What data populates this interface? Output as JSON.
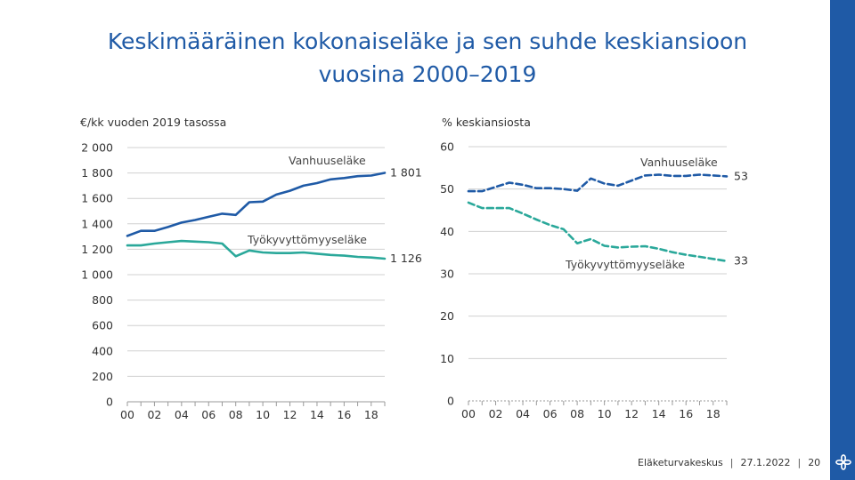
{
  "slide": {
    "title_line1": "Keskimääräinen kokonaiseläke ja sen suhde keskiansioon",
    "title_line2": "vuosina 2000–2019"
  },
  "footer": {
    "organization": "Eläketurvakeskus",
    "date": "27.1.2022",
    "page": "20"
  },
  "colors": {
    "title": "#1f5aa6",
    "vanhuuselake": "#1f5aa6",
    "tyokyvyttomyyselake": "#2aa89a",
    "grid": "#d0d0d0",
    "accent_bar": "#1f5aa6"
  },
  "logo_icon": "flower-logo-icon",
  "chart_data": [
    {
      "type": "line",
      "ylabel": "€/kk vuoden 2019 tasossa",
      "ylim": [
        0,
        2000
      ],
      "yticks": [
        0,
        200,
        400,
        600,
        800,
        1000,
        1200,
        1400,
        1600,
        1800,
        2000
      ],
      "ytick_labels": [
        "0",
        "200",
        "400",
        "600",
        "800",
        "1 000",
        "1 200",
        "1 400",
        "1 600",
        "1 800",
        "2 000"
      ],
      "xlim": [
        2000,
        2019
      ],
      "xticks": [
        2000,
        2002,
        2004,
        2006,
        2008,
        2010,
        2012,
        2014,
        2016,
        2018
      ],
      "xtick_labels": [
        "00",
        "02",
        "04",
        "06",
        "08",
        "10",
        "12",
        "14",
        "16",
        "18"
      ],
      "grid": true,
      "x": [
        2000,
        2001,
        2002,
        2003,
        2004,
        2005,
        2006,
        2007,
        2008,
        2009,
        2010,
        2011,
        2012,
        2013,
        2014,
        2015,
        2016,
        2017,
        2018,
        2019
      ],
      "series": [
        {
          "name": "Vanhuuseläke",
          "style": "solid",
          "values": [
            1305,
            1345,
            1345,
            1375,
            1410,
            1430,
            1455,
            1480,
            1470,
            1570,
            1575,
            1630,
            1660,
            1700,
            1720,
            1750,
            1760,
            1775,
            1780,
            1801
          ],
          "end_label": "1 801"
        },
        {
          "name": "Työkyvyttömyyseläke",
          "style": "solid",
          "values": [
            1230,
            1230,
            1245,
            1255,
            1265,
            1260,
            1255,
            1245,
            1145,
            1190,
            1175,
            1170,
            1170,
            1175,
            1165,
            1155,
            1150,
            1140,
            1135,
            1126
          ],
          "end_label": "1 126"
        }
      ]
    },
    {
      "type": "line",
      "ylabel": "% keskiansiosta",
      "ylim": [
        0,
        60
      ],
      "yticks": [
        0,
        10,
        20,
        30,
        40,
        50,
        60
      ],
      "ytick_labels": [
        "0",
        "10",
        "20",
        "30",
        "40",
        "50",
        "60"
      ],
      "xlim": [
        2000,
        2019
      ],
      "xticks": [
        2000,
        2002,
        2004,
        2006,
        2008,
        2010,
        2012,
        2014,
        2016,
        2018
      ],
      "xtick_labels": [
        "00",
        "02",
        "04",
        "06",
        "08",
        "10",
        "12",
        "14",
        "16",
        "18"
      ],
      "grid": true,
      "x": [
        2000,
        2001,
        2002,
        2003,
        2004,
        2005,
        2006,
        2007,
        2008,
        2009,
        2010,
        2011,
        2012,
        2013,
        2014,
        2015,
        2016,
        2017,
        2018,
        2019
      ],
      "series": [
        {
          "name": "Vanhuuseläke",
          "style": "dashed",
          "values": [
            49.5,
            49.5,
            50.5,
            51.5,
            51,
            50.2,
            50.2,
            50,
            49.6,
            52.5,
            51.3,
            50.8,
            52,
            53.2,
            53.4,
            53.1,
            53.1,
            53.4,
            53.2,
            53
          ],
          "end_label": "53"
        },
        {
          "name": "Työkyvyttömyyseläke",
          "style": "dashed",
          "values": [
            46.8,
            45.5,
            45.5,
            45.5,
            44.2,
            42.8,
            41.5,
            40.5,
            37.2,
            38.2,
            36.6,
            36.2,
            36.4,
            36.5,
            35.9,
            35.1,
            34.5,
            34,
            33.5,
            33
          ],
          "end_label": "33"
        }
      ]
    }
  ]
}
